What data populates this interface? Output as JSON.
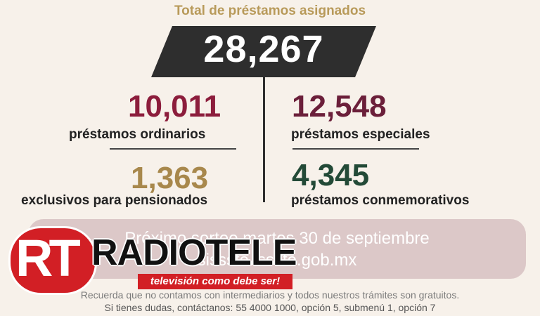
{
  "header": {
    "title": "Total de préstamos asignados"
  },
  "total": {
    "value": "28,267"
  },
  "stats": {
    "ordinarios": {
      "value": "10,011",
      "label": "préstamos ordinarios",
      "color": "#8c1d3c"
    },
    "pensionados": {
      "value": "1,363",
      "label": "exclusivos para pensionados",
      "color": "#a8884c"
    },
    "especiales": {
      "value": "12,548",
      "label": "préstamos especiales",
      "color": "#6b1f3a"
    },
    "conmemorativos": {
      "value": "4,345",
      "label": "préstamos conmemorativos",
      "color": "#234a37"
    }
  },
  "sorteo": {
    "line1": "Próximo sorteo martes 30 de septiembre",
    "line2": "sissste.issste.gob.mx"
  },
  "footer": {
    "note": "Recuerda que no contamos con intermediarios y todos nuestros trámites son gratuitos.",
    "contact": "Si tienes dudas, contáctanos: 55 4000 1000,  opción 5, submenú 1, opción 7"
  },
  "logo": {
    "monogram": "RT",
    "wordmark": "RADIOTELE",
    "tagline": "televisión como debe ser!"
  }
}
